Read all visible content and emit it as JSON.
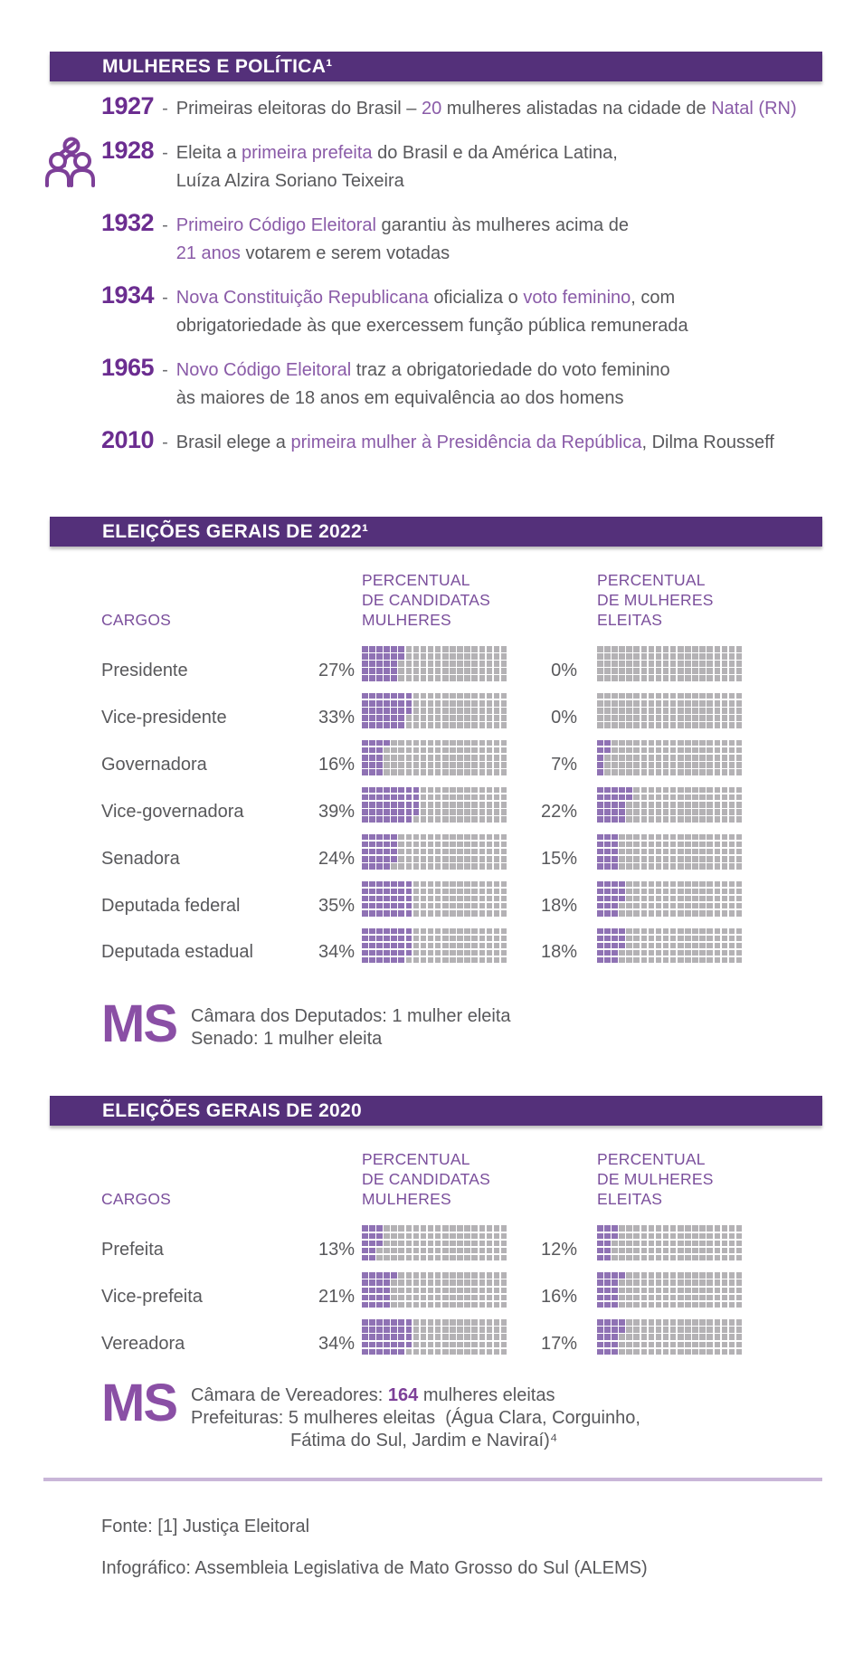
{
  "colors": {
    "banner_bg": "#54307a",
    "banner_text": "#ffffff",
    "year_purple": "#6b2d90",
    "highlight_purple": "#8a5ba8",
    "column_header_purple": "#7b4f9c",
    "body_gray": "#58585b",
    "waffle_filled": "#8f72b4",
    "waffle_empty": "#b4b2b5",
    "ms_purple": "#8a4fa5",
    "number_highlight_purple": "#7d3f98",
    "divider_lilac": "#c9b6d8"
  },
  "header": {
    "title": "MULHERES E POLÍTICA¹"
  },
  "icons": [
    {
      "name": "people-group-icon",
      "color": "#7d3f98"
    }
  ],
  "timeline": [
    {
      "year": "1927",
      "segments": [
        {
          "t": "Primeiras eleitoras do Brasil – "
        },
        {
          "t": "20",
          "p": 1
        },
        {
          "t": " mulheres alistadas na cidade de "
        },
        {
          "t": "Natal (RN)",
          "p": 1
        }
      ]
    },
    {
      "year": "1928",
      "segments": [
        {
          "t": "Eleita a "
        },
        {
          "t": "primeira prefeita",
          "p": 1
        },
        {
          "t": " do Brasil e da América Latina,\nLuíza Alzira Soriano Teixeira"
        }
      ]
    },
    {
      "year": "1932",
      "segments": [
        {
          "t": "Primeiro Código Eleitoral",
          "p": 1
        },
        {
          "t": " garantiu às mulheres acima de\n"
        },
        {
          "t": "21 anos",
          "p": 1
        },
        {
          "t": " votarem e serem votadas"
        }
      ]
    },
    {
      "year": "1934",
      "segments": [
        {
          "t": "Nova Constituição Republicana",
          "p": 1
        },
        {
          "t": " oficializa o "
        },
        {
          "t": "voto feminino",
          "p": 1
        },
        {
          "t": ", com\nobrigatoriedade às que exercessem função pública remunerada"
        }
      ]
    },
    {
      "year": "1965",
      "segments": [
        {
          "t": "Novo Código Eleitoral",
          "p": 1
        },
        {
          "t": " traz a obrigatoriedade do voto feminino\nàs maiores de 18 anos em equivalência ao dos homens"
        }
      ]
    },
    {
      "year": "2010",
      "segments": [
        {
          "t": "Brasil elege a "
        },
        {
          "t": "primeira mulher à Presidência da República",
          "p": 1
        },
        {
          "t": ", Dilma Rousseff"
        }
      ]
    }
  ],
  "sections": [
    {
      "banner": "ELEIÇÕES GERAIS DE 2022¹",
      "columns": {
        "cargos": "CARGOS",
        "candidatas": "PERCENTUAL\nDE CANDIDATAS\nMULHERES",
        "eleitas": "PERCENTUAL\nDE MULHERES\nELEITAS"
      },
      "rows": [
        {
          "cargo": "Presidente",
          "candidatas": 27,
          "eleitas": 0
        },
        {
          "cargo": "Vice-presidente",
          "candidatas": 33,
          "eleitas": 0
        },
        {
          "cargo": "Governadora",
          "candidatas": 16,
          "eleitas": 7
        },
        {
          "cargo": "Vice-governadora",
          "candidatas": 39,
          "eleitas": 22
        },
        {
          "cargo": "Senadora",
          "candidatas": 24,
          "eleitas": 15
        },
        {
          "cargo": "Deputada federal",
          "candidatas": 35,
          "eleitas": 18
        },
        {
          "cargo": "Deputada estadual",
          "candidatas": 34,
          "eleitas": 18
        }
      ],
      "ms_note": {
        "label": "MS",
        "lines": [
          {
            "segments": [
              {
                "t": "Câmara dos Deputados: 1 mulher eleita"
              }
            ]
          },
          {
            "segments": [
              {
                "t": "Senado: 1 mulher eleita"
              }
            ]
          }
        ]
      }
    },
    {
      "banner": "ELEIÇÕES GERAIS DE 2020",
      "columns": {
        "cargos": "CARGOS",
        "candidatas": "PERCENTUAL\nDE CANDIDATAS\nMULHERES",
        "eleitas": "PERCENTUAL\nDE MULHERES\nELEITAS"
      },
      "rows": [
        {
          "cargo": "Prefeita",
          "candidatas": 13,
          "eleitas": 12
        },
        {
          "cargo": "Vice-prefeita",
          "candidatas": 21,
          "eleitas": 16
        },
        {
          "cargo": "Vereadora",
          "candidatas": 34,
          "eleitas": 17
        }
      ],
      "ms_note": {
        "label": "MS",
        "lines": [
          {
            "segments": [
              {
                "t": "Câmara de Vereadores: "
              },
              {
                "t": "164",
                "b": 1
              },
              {
                "t": " mulheres eleitas"
              }
            ]
          },
          {
            "segments": [
              {
                "t": "Prefeituras: 5 mulheres eleitas  (Água Clara, Corguinho,"
              }
            ]
          },
          {
            "segments": [
              {
                "t": "Fátima do Sul, Jardim e Naviraí)⁴"
              }
            ],
            "indent": 1
          }
        ]
      }
    }
  ],
  "footer": {
    "source": "Fonte: [1] Justiça Eleitoral",
    "credit": "Infográfico: Assembleia Legislativa de Mato Grosso do Sul (ALEMS)"
  },
  "chart_data": [
    {
      "type": "table",
      "render_style": "waffle-grid-20x5-of-100-squares-filled-column-major",
      "title": "ELEIÇÕES GERAIS DE 2022¹",
      "categories": [
        "Presidente",
        "Vice-presidente",
        "Governadora",
        "Vice-governadora",
        "Senadora",
        "Deputada federal",
        "Deputada estadual"
      ],
      "series": [
        {
          "name": "Percentual de candidatas mulheres",
          "values": [
            27,
            33,
            16,
            39,
            24,
            35,
            34
          ]
        },
        {
          "name": "Percentual de mulheres eleitas",
          "values": [
            0,
            0,
            7,
            22,
            15,
            18,
            18
          ]
        }
      ],
      "value_unit": "%",
      "value_range": [
        0,
        100
      ]
    },
    {
      "type": "table",
      "render_style": "waffle-grid-20x5-of-100-squares-filled-column-major",
      "title": "ELEIÇÕES GERAIS DE 2020",
      "categories": [
        "Prefeita",
        "Vice-prefeita",
        "Vereadora"
      ],
      "series": [
        {
          "name": "Percentual de candidatas mulheres",
          "values": [
            13,
            21,
            34
          ]
        },
        {
          "name": "Percentual de mulheres eleitas",
          "values": [
            12,
            16,
            17
          ]
        }
      ],
      "value_unit": "%",
      "value_range": [
        0,
        100
      ]
    }
  ]
}
